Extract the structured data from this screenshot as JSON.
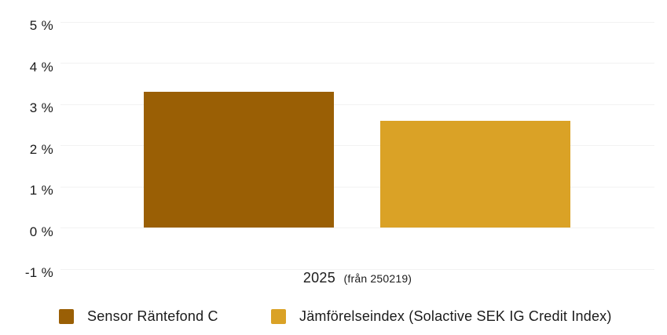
{
  "chart": {
    "background_color": "#ffffff",
    "text_color": "#1b1b1b",
    "grid_color": "#f2f2f2"
  },
  "chart_data": {
    "type": "bar",
    "title": "",
    "categories": [
      "2025 (från 250219)"
    ],
    "series": [
      {
        "name": "Sensor Räntefond C",
        "values": [
          3.3
        ],
        "color": "#9A5F05"
      },
      {
        "name": "Jämförelseindex (Solactive SEK IG Credit Index)",
        "values": [
          2.6
        ],
        "color": "#DAA226"
      }
    ],
    "xlabel": "2025 (från 250219)",
    "ylabel": "",
    "ylim": [
      -1,
      5
    ],
    "ytick_step": 1,
    "ytick_labels": [
      "5 %",
      "4 %",
      "3 %",
      "2 %",
      "1 %",
      "0 %",
      "-1 %"
    ],
    "grid": true,
    "legend_position": "bottom"
  },
  "xaxis": {
    "label_main": "2025",
    "label_sub": "(från 250219)"
  },
  "legend": {
    "items": [
      {
        "label": "Sensor Räntefond C",
        "color": "#9A5F05"
      },
      {
        "label": "Jämförelseindex (Solactive SEK IG Credit Index)",
        "color": "#DAA226"
      }
    ]
  }
}
